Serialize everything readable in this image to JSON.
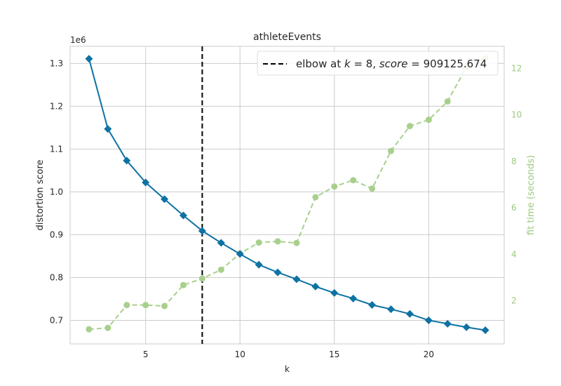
{
  "chart_data": {
    "type": "line",
    "title": "athleteEvents",
    "xlabel": "k",
    "ylabel": "distortion score",
    "y_offset_label": "1e6",
    "y2label": "fit time (seconds)",
    "xlim": [
      1.0,
      24.0
    ],
    "ylim": [
      0.645,
      1.34
    ],
    "y2lim": [
      0.15,
      12.95
    ],
    "xticks": [
      5,
      10,
      15,
      20
    ],
    "yticks": [
      0.7,
      0.8,
      0.9,
      1.0,
      1.1,
      1.2,
      1.3
    ],
    "yticklabels": [
      "0.7",
      "0.8",
      "0.9",
      "1.0",
      "1.1",
      "1.2",
      "1.3"
    ],
    "y2ticks": [
      2,
      4,
      6,
      8,
      10,
      12
    ],
    "grid": true,
    "legend_position": "top-right",
    "x": [
      2,
      3,
      4,
      5,
      6,
      7,
      8,
      9,
      10,
      11,
      12,
      13,
      14,
      15,
      16,
      17,
      18,
      19,
      20,
      21,
      22,
      23
    ],
    "series": [
      {
        "axis": "left",
        "color": "#0e72a4",
        "marker": "diamond",
        "values": [
          1.311,
          1.147,
          1.073,
          1.022,
          0.983,
          0.945,
          0.909,
          0.881,
          0.855,
          0.83,
          0.812,
          0.796,
          0.779,
          0.764,
          0.751,
          0.736,
          0.726,
          0.715,
          0.7,
          0.692,
          0.684,
          0.677
        ]
      },
      {
        "axis": "right",
        "color": "#a8d08d",
        "marker": "circle",
        "dashed": true,
        "values": [
          0.78,
          0.84,
          1.82,
          1.82,
          1.78,
          2.68,
          2.96,
          3.34,
          4.04,
          4.51,
          4.56,
          4.49,
          6.46,
          6.92,
          7.19,
          6.83,
          8.45,
          9.52,
          9.79,
          10.58,
          12.06,
          12.44
        ]
      }
    ],
    "annotations": [
      {
        "type": "vline",
        "x": 8,
        "style": "dashed",
        "color": "#000000"
      }
    ],
    "legend": {
      "prefix": "elbow at ",
      "k_symbol": "k",
      "k_eq": " = 8, ",
      "score_symbol": "score",
      "score_eq": " = 909125.674"
    }
  }
}
